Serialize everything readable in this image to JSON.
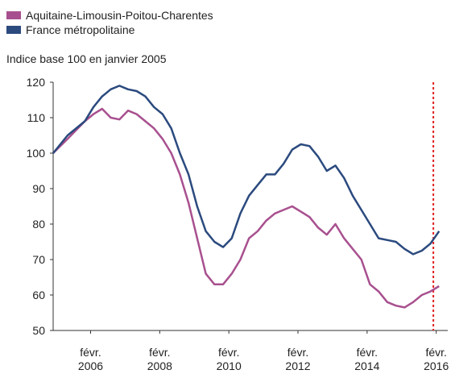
{
  "chart_data": {
    "type": "line",
    "subtitle": "Indice base 100 en janvier 2005",
    "x": [
      "2005-01",
      "2005-06",
      "2005-12",
      "2006-03",
      "2006-06",
      "2006-09",
      "2006-12",
      "2007-03",
      "2007-06",
      "2007-09",
      "2007-12",
      "2008-03",
      "2008-06",
      "2008-09",
      "2008-12",
      "2009-03",
      "2009-06",
      "2009-09",
      "2009-12",
      "2010-03",
      "2010-06",
      "2010-09",
      "2010-12",
      "2011-03",
      "2011-06",
      "2011-09",
      "2011-12",
      "2012-03",
      "2012-06",
      "2012-09",
      "2012-12",
      "2013-03",
      "2013-06",
      "2013-09",
      "2013-12",
      "2014-03",
      "2014-06",
      "2014-09",
      "2014-12",
      "2015-03",
      "2015-06",
      "2015-09",
      "2015-12",
      "2016-03"
    ],
    "series": [
      {
        "name": "Aquitaine-Limousin-Poitou-Charentes",
        "color": "#a8508f",
        "values": [
          100,
          104,
          109,
          111,
          112.5,
          110,
          109.5,
          112,
          111,
          109,
          107,
          104,
          100,
          94,
          86,
          76,
          66,
          63,
          63,
          66,
          70,
          76,
          78,
          81,
          83,
          84,
          85,
          83.5,
          82,
          79,
          77,
          80,
          76,
          73,
          70,
          63,
          61,
          58,
          57,
          56.5,
          58,
          60,
          61,
          62.5
        ]
      },
      {
        "name": "France métropolitaine",
        "color": "#2b4a7e",
        "values": [
          100,
          105,
          109,
          113,
          116,
          118,
          119,
          118,
          117.5,
          116,
          113,
          111,
          107,
          100,
          94,
          85,
          78,
          75,
          73.5,
          76,
          83,
          88,
          91,
          94,
          94,
          97,
          101,
          102.5,
          102,
          99,
          95,
          96.5,
          93,
          88,
          84,
          80,
          76,
          75.5,
          75,
          73,
          71.5,
          72.5,
          74.5,
          78
        ]
      }
    ],
    "xlim": [
      "2005-01",
      "2016-06"
    ],
    "xticks": [
      {
        "value": "2006-02",
        "label": "févr. 2006"
      },
      {
        "value": "2008-02",
        "label": "févr. 2008"
      },
      {
        "value": "2010-02",
        "label": "févr. 2010"
      },
      {
        "value": "2012-02",
        "label": "févr. 2012"
      },
      {
        "value": "2014-02",
        "label": "févr. 2014"
      },
      {
        "value": "2016-02",
        "label": "févr. 2016"
      }
    ],
    "ylim": [
      50,
      120
    ],
    "yticks": [
      50,
      60,
      70,
      80,
      90,
      100,
      110,
      120
    ],
    "ref_line": {
      "x": "2016-01",
      "color": "#e02020"
    },
    "grid": false
  }
}
